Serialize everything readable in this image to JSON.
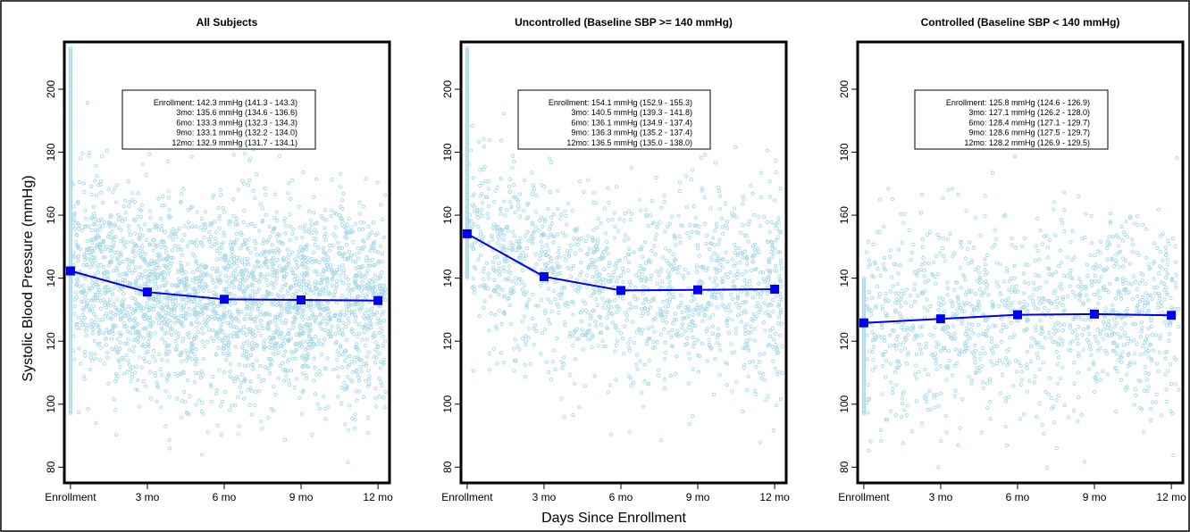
{
  "figure": {
    "ylabel": "Systolic Blood Pressure (mmHg)",
    "xlabel": "Days Since Enrollment",
    "x_tick_labels": [
      "Enrollment",
      "3 mo",
      "6 mo",
      "9 mo",
      "12 mo"
    ],
    "y_ticks": [
      80,
      100,
      120,
      140,
      160,
      180,
      200
    ],
    "colors": {
      "points": "#a9d9e8",
      "mean_line": "#0000ee",
      "frame": "#000000"
    }
  },
  "chart_data": [
    {
      "type": "scatter",
      "title": "All Subjects",
      "ylim": [
        75,
        215
      ],
      "xlim": [
        -0.08,
        4.15
      ],
      "grid": false,
      "point_density": 2600,
      "baseline_range": [
        97,
        213
      ],
      "series": [
        {
          "values": [
            142.3,
            135.6,
            133.3,
            133.1,
            132.9
          ],
          "x": [
            0,
            1,
            2,
            3,
            4
          ]
        }
      ],
      "annotation": [
        "Enrollment: 142.3 mmHg (141.3 - 143.3)",
        "3mo: 135.6 mmHg (134.6 - 136.6)",
        "6mo: 133.3 mmHg (132.3 - 134.3)",
        "9mo: 133.1 mmHg (132.2 - 134.0)",
        "12mo: 132.9 mmHg (131.7 - 134.1)"
      ]
    },
    {
      "type": "scatter",
      "title": "Uncontrolled (Baseline SBP >= 140 mmHg)",
      "ylim": [
        75,
        215
      ],
      "xlim": [
        -0.08,
        4.15
      ],
      "grid": false,
      "point_density": 1400,
      "baseline_range": [
        140,
        213
      ],
      "series": [
        {
          "values": [
            154.1,
            140.5,
            136.1,
            136.3,
            136.5
          ],
          "x": [
            0,
            1,
            2,
            3,
            4
          ]
        }
      ],
      "annotation": [
        "Enrollment: 154.1 mmHg (152.9 - 155.3)",
        "3mo: 140.5 mmHg (139.3 - 141.8)",
        "6mo: 136.1 mmHg (134.9 - 137.4)",
        "9mo: 136.3 mmHg (135.2 - 137.4)",
        "12mo: 136.5 mmHg (135.0 - 138.0)"
      ]
    },
    {
      "type": "scatter",
      "title": "Controlled (Baseline SBP < 140 mmHg)",
      "ylim": [
        75,
        215
      ],
      "xlim": [
        -0.08,
        4.15
      ],
      "grid": false,
      "point_density": 1200,
      "baseline_range": [
        97,
        140
      ],
      "series": [
        {
          "values": [
            125.8,
            127.1,
            128.4,
            128.6,
            128.2
          ],
          "x": [
            0,
            1,
            2,
            3,
            4
          ]
        }
      ],
      "annotation": [
        "Enrollment: 125.8 mmHg (124.6 - 126.9)",
        "3mo: 127.1 mmHg (126.2 - 128.0)",
        "6mo: 128.4 mmHg (127.1 - 129.7)",
        "9mo: 128.6 mmHg (127.5 - 129.7)",
        "12mo: 128.2 mmHg (126.9 - 129.5)"
      ]
    }
  ]
}
